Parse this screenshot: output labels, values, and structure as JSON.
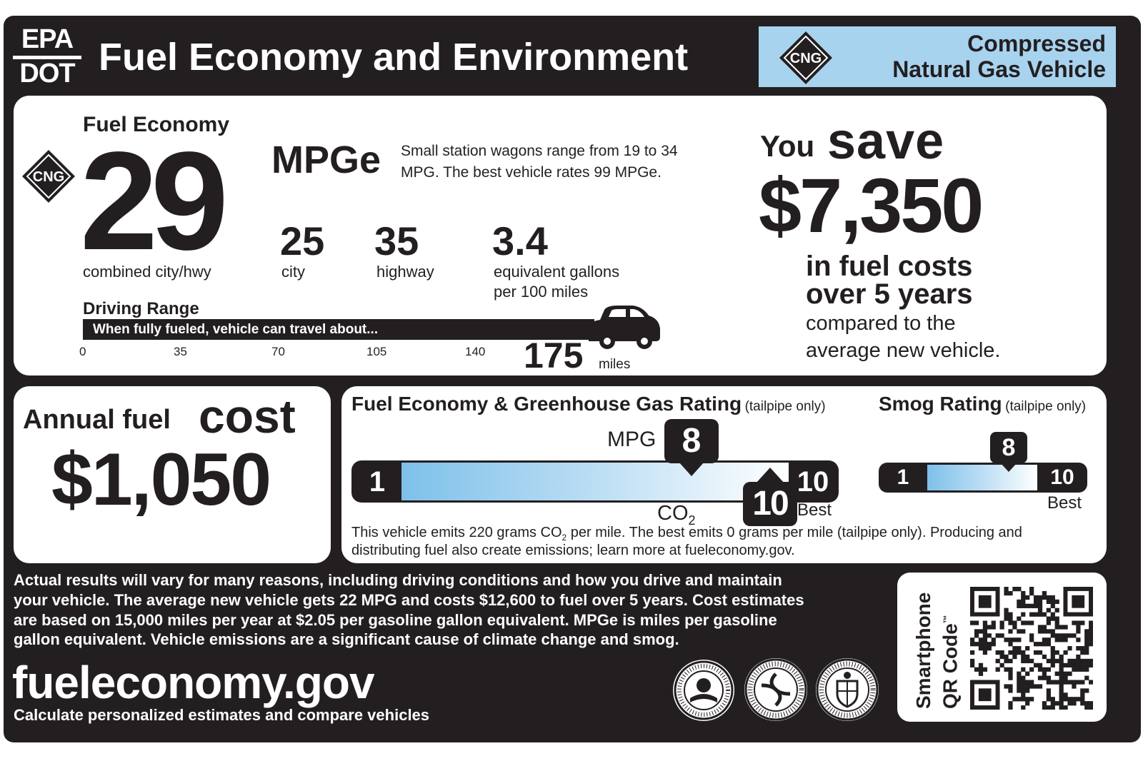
{
  "header": {
    "epa": "EPA",
    "dot": "DOT",
    "title": "Fuel Economy and Environment",
    "fuel_badge": "CNG",
    "fuel_type_line1": "Compressed",
    "fuel_type_line2": "Natural Gas Vehicle"
  },
  "economy": {
    "heading": "Fuel Economy",
    "badge": "CNG",
    "combined": "29",
    "unit": "MPGe",
    "combined_label": "combined city/hwy",
    "class_note": "Small station wagons range from 19 to 34 MPG. The best vehicle rates 99 MPGe.",
    "city_value": "25",
    "city_label": "city",
    "highway_value": "35",
    "highway_label": "highway",
    "gallons_value": "3.4",
    "gallons_label1": "equivalent gallons",
    "gallons_label2": "per 100 miles"
  },
  "range": {
    "heading": "Driving Range",
    "bar_text": "When fully fueled, vehicle can travel about...",
    "ticks": [
      "0",
      "35",
      "70",
      "105",
      "140"
    ],
    "value": "175",
    "unit": "miles"
  },
  "savings": {
    "you": "You",
    "save": "save",
    "amount": "$7,350",
    "line1": "in fuel costs",
    "line2": "over 5 years",
    "line3": "compared to the",
    "line4": "average new vehicle."
  },
  "annual": {
    "label": "Annual fuel",
    "cost_word": "cost",
    "amount": "$1,050"
  },
  "ghg": {
    "title": "Fuel Economy & Greenhouse Gas Rating",
    "qualifier": "(tailpipe only)",
    "min": "1",
    "max": "10",
    "best": "Best",
    "mpg_label": "MPG",
    "mpg_rating": "8",
    "co2_label": "CO",
    "co2_sub": "2",
    "co2_rating": "10",
    "note_line1_a": "This vehicle emits 220 grams CO",
    "note_sub": "2",
    "note_line1_b": " per mile. The best emits 0 grams per mile (tailpipe only). Producing and",
    "note_line2": "distributing fuel also create emissions; learn more at fueleconomy.gov."
  },
  "smog": {
    "title": "Smog Rating",
    "qualifier": "(tailpipe only)",
    "min": "1",
    "max": "10",
    "rating": "8",
    "best": "Best"
  },
  "disclaimer": {
    "line1": "Actual results will vary for many reasons, including driving conditions and how you drive and maintain",
    "line2": "your vehicle. The average new vehicle gets 22 MPG and costs $12,600 to fuel over 5 years. Cost estimates",
    "line3": "are based on 15,000 miles per year at $2.05 per gasoline gallon equivalent. MPGe is miles per gasoline",
    "line4": "gallon equivalent. Vehicle emissions are a significant cause of climate change and smog."
  },
  "footer": {
    "site": "fueleconomy.gov",
    "tagline": "Calculate personalized estimates and compare vehicles"
  },
  "qr": {
    "line1": "Smartphone",
    "line2": "QR Code",
    "tm": "™"
  }
}
